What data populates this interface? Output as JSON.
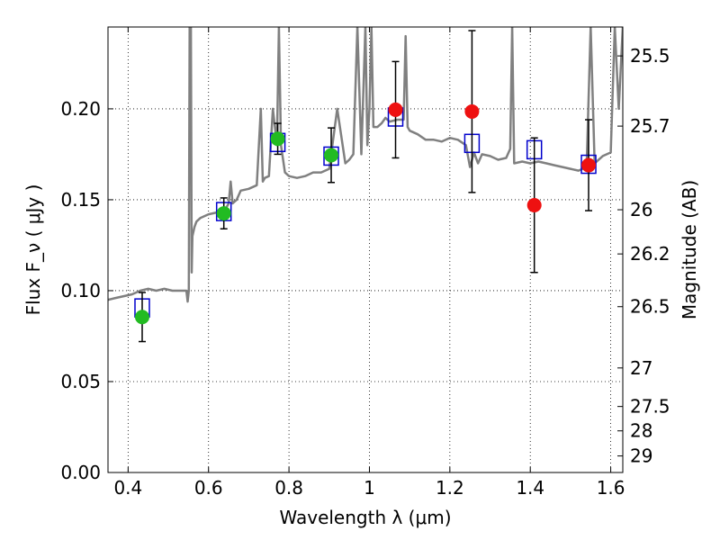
{
  "chart_data": {
    "type": "scatter",
    "xlabel": "Wavelength  λ (μm)",
    "ylabel": "Flux  F_ν ( μJy )",
    "y2label": "Magnitude (AB)",
    "xlim": [
      0.35,
      1.63
    ],
    "ylim": [
      0.0,
      0.245
    ],
    "xticks": [
      0.4,
      0.6,
      0.8,
      1.0,
      1.2,
      1.4,
      1.6
    ],
    "xticklabels": [
      "0.4",
      "0.6",
      "0.8",
      "1",
      "1.2",
      "1.4",
      "1.6"
    ],
    "yticks": [
      0.0,
      0.05,
      0.1,
      0.15,
      0.2
    ],
    "yticklabels": [
      "0.00",
      "0.05",
      "0.10",
      "0.15",
      "0.20"
    ],
    "magnitude_ticks": [
      {
        "label": "25.5",
        "flux": 0.2291
      },
      {
        "label": "25.7",
        "flux": 0.1905
      },
      {
        "label": "26",
        "flux": 0.1445
      },
      {
        "label": "26.2",
        "flux": 0.1202
      },
      {
        "label": "26.5",
        "flux": 0.0912
      },
      {
        "label": "27",
        "flux": 0.0575
      },
      {
        "label": "27.5",
        "flux": 0.0363
      },
      {
        "label": "28",
        "flux": 0.0229
      },
      {
        "label": "29",
        "flux": 0.0091
      }
    ],
    "grid": true,
    "colors": {
      "template": "#808080",
      "model": "#0000cc",
      "green": "#22bb22",
      "red": "#ee1111",
      "errorbar": "#000000"
    },
    "template_spectrum": {
      "x": [
        0.35,
        0.37,
        0.39,
        0.41,
        0.43,
        0.45,
        0.47,
        0.49,
        0.51,
        0.53,
        0.545,
        0.548,
        0.551,
        0.553,
        0.556,
        0.558,
        0.56,
        0.565,
        0.57,
        0.58,
        0.6,
        0.62,
        0.64,
        0.65,
        0.655,
        0.66,
        0.67,
        0.68,
        0.7,
        0.72,
        0.73,
        0.735,
        0.74,
        0.75,
        0.76,
        0.77,
        0.775,
        0.78,
        0.79,
        0.8,
        0.82,
        0.84,
        0.86,
        0.88,
        0.9,
        0.92,
        0.94,
        0.95,
        0.96,
        0.97,
        0.98,
        0.99,
        0.995,
        1.0,
        1.005,
        1.01,
        1.02,
        1.03,
        1.04,
        1.05,
        1.07,
        1.085,
        1.09,
        1.095,
        1.1,
        1.12,
        1.14,
        1.16,
        1.18,
        1.2,
        1.22,
        1.24,
        1.25,
        1.26,
        1.27,
        1.28,
        1.3,
        1.32,
        1.34,
        1.35,
        1.355,
        1.36,
        1.38,
        1.4,
        1.42,
        1.44,
        1.46,
        1.48,
        1.5,
        1.52,
        1.53,
        1.54,
        1.55,
        1.56,
        1.58,
        1.6,
        1.61,
        1.62,
        1.63
      ],
      "y": [
        0.095,
        0.096,
        0.097,
        0.098,
        0.1,
        0.101,
        0.1,
        0.101,
        0.1,
        0.1,
        0.1,
        0.094,
        0.1,
        0.245,
        0.245,
        0.11,
        0.13,
        0.135,
        0.138,
        0.14,
        0.142,
        0.143,
        0.144,
        0.148,
        0.16,
        0.148,
        0.15,
        0.155,
        0.156,
        0.158,
        0.2,
        0.16,
        0.162,
        0.163,
        0.2,
        0.18,
        0.245,
        0.18,
        0.165,
        0.163,
        0.162,
        0.163,
        0.165,
        0.165,
        0.167,
        0.2,
        0.17,
        0.172,
        0.175,
        0.245,
        0.175,
        0.245,
        0.18,
        0.2,
        0.245,
        0.19,
        0.19,
        0.192,
        0.195,
        0.193,
        0.194,
        0.194,
        0.24,
        0.19,
        0.188,
        0.186,
        0.183,
        0.183,
        0.182,
        0.184,
        0.183,
        0.18,
        0.168,
        0.176,
        0.17,
        0.175,
        0.174,
        0.172,
        0.173,
        0.178,
        0.245,
        0.17,
        0.171,
        0.17,
        0.171,
        0.17,
        0.169,
        0.168,
        0.167,
        0.166,
        0.167,
        0.168,
        0.245,
        0.17,
        0.174,
        0.176,
        0.245,
        0.2,
        0.245
      ]
    },
    "model_points": {
      "x": [
        0.435,
        0.638,
        0.772,
        0.905,
        1.065,
        1.255,
        1.41,
        1.545
      ],
      "y": [
        0.0905,
        0.1435,
        0.1815,
        0.174,
        0.1955,
        0.181,
        0.1775,
        0.1695
      ]
    },
    "observed_points": [
      {
        "x": 0.435,
        "y": 0.0855,
        "err": 0.0135,
        "color": "green"
      },
      {
        "x": 0.638,
        "y": 0.1425,
        "err": 0.0085,
        "color": "green"
      },
      {
        "x": 0.772,
        "y": 0.1835,
        "err": 0.0085,
        "color": "green"
      },
      {
        "x": 0.905,
        "y": 0.1745,
        "err": 0.015,
        "color": "green"
      },
      {
        "x": 1.065,
        "y": 0.1995,
        "err": 0.0265,
        "color": "red"
      },
      {
        "x": 1.255,
        "y": 0.1985,
        "err": 0.0445,
        "color": "red"
      },
      {
        "x": 1.41,
        "y": 0.147,
        "err": 0.037,
        "color": "red"
      },
      {
        "x": 1.545,
        "y": 0.169,
        "err": 0.025,
        "color": "red"
      }
    ]
  }
}
